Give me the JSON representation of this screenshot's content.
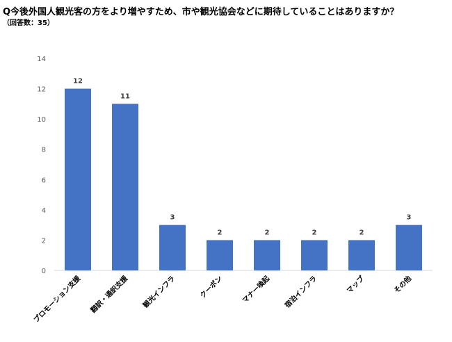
{
  "chart_data": {
    "type": "bar",
    "title": "Q今後外国人観光客の方をより増やすため、市や観光協会などに期待していることはありますか？",
    "subtitle": "（回答数：35）",
    "categories": [
      "プロモーション支援",
      "翻訳・通訳支援",
      "観光インフラ",
      "クーポン",
      "マナー喚起",
      "宿泊インフラ",
      "マップ",
      "その他"
    ],
    "series": [
      {
        "values": [
          12,
          11,
          3,
          2,
          2,
          2,
          2,
          3
        ]
      }
    ],
    "ylim": [
      0,
      14
    ],
    "yticks": [
      0,
      2,
      4,
      6,
      8,
      10,
      12,
      14
    ],
    "xlabel": "",
    "ylabel": "",
    "grid": false,
    "bar_color": "#4472C4",
    "axis_color": "#D9D9D9",
    "data_labels": true
  }
}
